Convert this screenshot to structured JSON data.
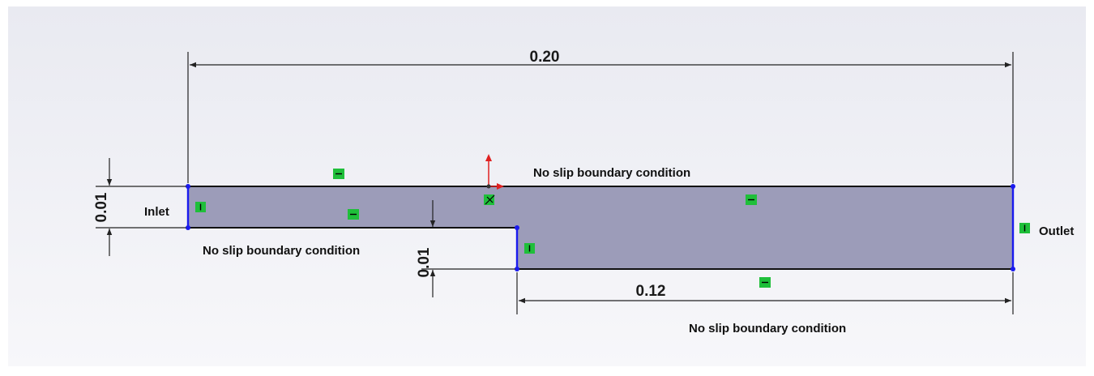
{
  "colors": {
    "background_top": "#e9eaf1",
    "background_bottom": "#f7f7fa",
    "fill": "#9c9cb9",
    "edge_black": "#111111",
    "edge_blue": "#1a1aee",
    "dim_line": "#222222",
    "relation_green": "#1fbf3a",
    "origin_red": "#e02020"
  },
  "dimensions": {
    "overall_length": "0.20",
    "inlet_height": "0.01",
    "step_height": "0.01",
    "downstream_length": "0.12"
  },
  "labels": {
    "inlet": "Inlet",
    "outlet": "Outlet",
    "no_slip_top": "No slip boundary condition",
    "no_slip_lower_left": "No slip boundary condition",
    "no_slip_bottom": "No slip boundary condition"
  },
  "relation_icons": {
    "horizontal_glyph": "—",
    "vertical_glyph": "I"
  },
  "icons": {
    "horizontal_relation": "horizontal-relation-icon",
    "vertical_relation": "vertical-relation-icon",
    "origin": "origin-axes-icon",
    "coincident": "coincident-relation-icon"
  }
}
